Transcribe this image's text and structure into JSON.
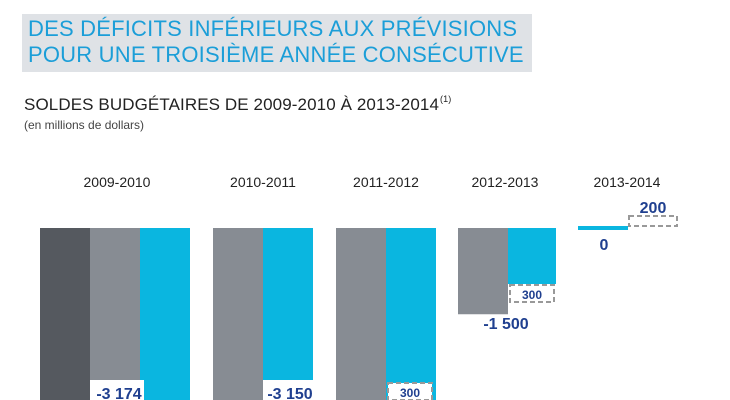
{
  "header": {
    "title_line1": "DES DÉFICITS INFÉRIEURS AUX PRÉVISIONS",
    "title_line2": "POUR UNE TROISIÈME ANNÉE CONSÉCUTIVE"
  },
  "chart_data": {
    "type": "bar",
    "title": "SOLDES BUDGÉTAIRES DE 2009-2010 À 2013-2014",
    "title_note": "(1)",
    "units": "(en millions de dollars)",
    "categories": [
      "2009-2010",
      "2010-2011",
      "2011-2012",
      "2012-2013",
      "2013-2014"
    ],
    "colors": {
      "dark": "#55595f",
      "gray": "#878c93",
      "cyan": "#0ab6e0",
      "label": "#1f3f8f"
    },
    "groups": [
      {
        "year": "2009-2010",
        "bars": [
          {
            "color": "dark"
          },
          {
            "color": "gray",
            "value": -3174,
            "label": "-3 174"
          },
          {
            "color": "cyan"
          }
        ]
      },
      {
        "year": "2010-2011",
        "bars": [
          {
            "color": "gray",
            "value": -3150,
            "label": "-3 150"
          },
          {
            "color": "cyan"
          }
        ],
        "difference_label": ""
      },
      {
        "year": "2011-2012",
        "bars": [
          {
            "color": "gray"
          },
          {
            "color": "cyan"
          }
        ],
        "difference_label": "300"
      },
      {
        "year": "2012-2013",
        "bars": [
          {
            "color": "gray",
            "value": -1500,
            "label": "-1 500"
          },
          {
            "color": "cyan"
          }
        ],
        "difference_label": "300"
      },
      {
        "year": "2013-2014",
        "bars": [
          {
            "color": "cyan",
            "value": 0,
            "label": "0"
          }
        ],
        "difference_label": "200"
      }
    ]
  }
}
